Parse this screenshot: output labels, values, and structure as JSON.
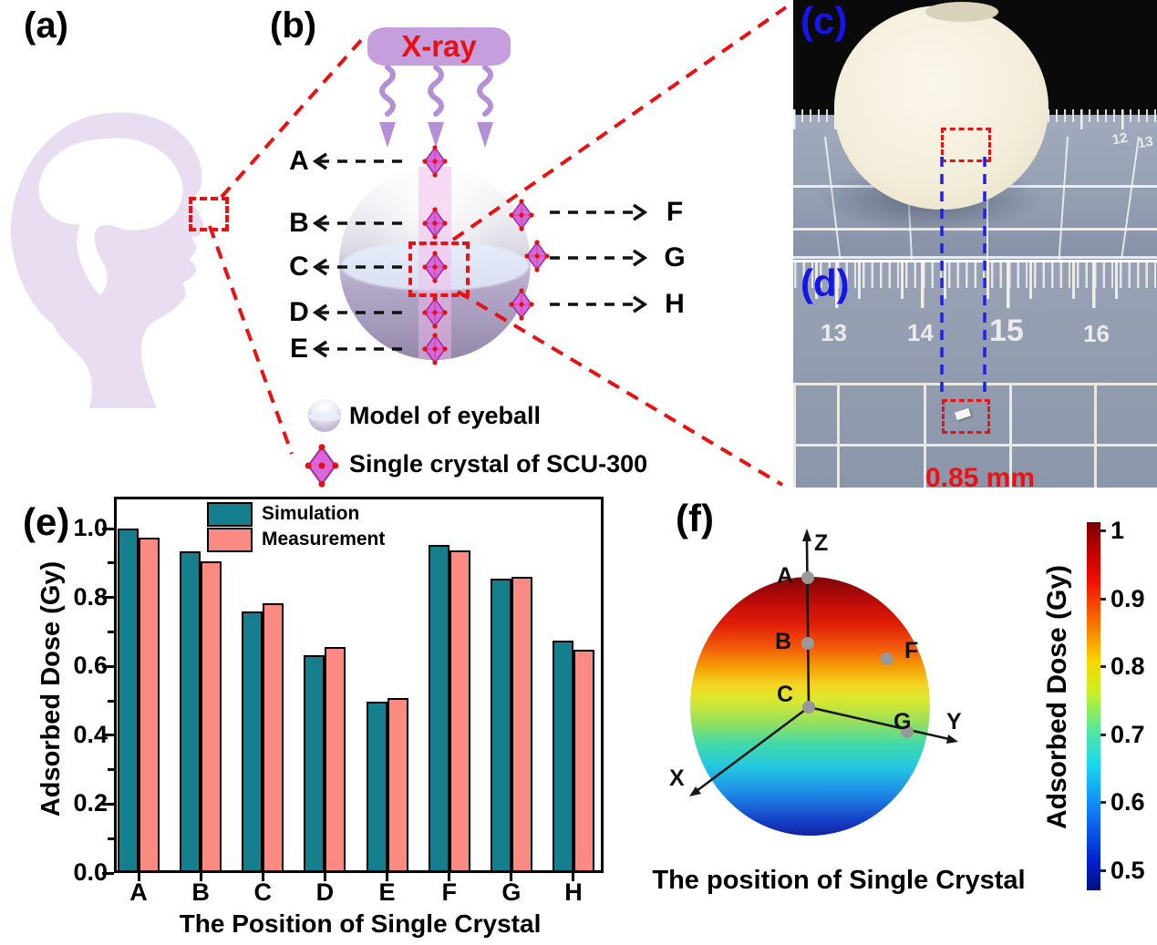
{
  "panels": {
    "a": {
      "label": "(a)"
    },
    "b": {
      "label": "(b)",
      "xray_label": "X-ray",
      "left_positions": [
        "A",
        "B",
        "C",
        "D",
        "E"
      ],
      "right_positions": [
        "F",
        "G",
        "H"
      ],
      "legend": [
        {
          "icon": "eyeball-sphere-icon",
          "label": "Model of eyeball"
        },
        {
          "icon": "crystal-diamond-icon",
          "label": "Single crystal of SCU-300"
        }
      ]
    },
    "c": {
      "label": "(c)",
      "ruler_numbers": [
        "12",
        "13"
      ]
    },
    "d": {
      "label": "(d)",
      "ruler_numbers": [
        "13",
        "14",
        "15",
        "16"
      ],
      "size_label": "0.85 mm"
    },
    "e": {
      "label": "(e)"
    },
    "f": {
      "label": "(f)",
      "axis_labels": {
        "x": "X",
        "y": "Y",
        "z": "Z"
      },
      "point_labels": {
        "a": "A",
        "b": "B",
        "c": "C",
        "f": "F",
        "g": "G"
      },
      "caption": "The position of Single Crystal",
      "colorbar": {
        "label": "Adsorbed Dose (Gy)",
        "ticks": [
          "1",
          "0.9",
          "0.8",
          "0.7",
          "0.6",
          "0.5"
        ]
      }
    }
  },
  "chart_data": [
    {
      "type": "bar",
      "title": "",
      "categories": [
        "A",
        "B",
        "C",
        "D",
        "E",
        "F",
        "G",
        "H"
      ],
      "series": [
        {
          "name": "Simulation",
          "color": "#157f8e",
          "values": [
            1.0,
            0.935,
            0.76,
            0.632,
            0.497,
            0.952,
            0.855,
            0.674
          ]
        },
        {
          "name": "Measurement",
          "color": "#fa8a82",
          "values": [
            0.973,
            0.906,
            0.784,
            0.655,
            0.508,
            0.937,
            0.861,
            0.648
          ]
        }
      ],
      "xlabel": "The Position of Single Crystal",
      "ylabel": "Adsorbed Dose (Gy)",
      "ylim": [
        0.0,
        1.09
      ],
      "yticks": [
        0.0,
        0.2,
        0.4,
        0.6,
        0.8,
        1.0
      ],
      "legend_position": "top-center",
      "grid": false
    },
    {
      "type": "heatmap",
      "title": "The position of Single Crystal",
      "description": "3D sphere surface colored by adsorbed dose (jet colormap); dose decreases from top pole Z (~1 Gy, dark red) to bottom (~0.5 Gy, dark blue)",
      "marked_points": [
        "A",
        "B",
        "C",
        "F",
        "G"
      ],
      "axes": [
        "X",
        "Y",
        "Z"
      ],
      "colorbar_label": "Adsorbed Dose (Gy)",
      "colorbar_ticks": [
        1,
        0.9,
        0.8,
        0.7,
        0.6,
        0.5
      ],
      "colorbar_range": [
        0.47,
        1.01
      ]
    }
  ],
  "colors": {
    "simulation_teal": "#157f8e",
    "measurement_salmon": "#fa8a82",
    "accent_red": "#e81212",
    "connector_blue": "#2020e8",
    "panel_label_blue": "#1515e8",
    "head_lavender": "#e9ddf2",
    "xray_purple": "#c79edd",
    "crystal_magenta": "#da67da"
  }
}
